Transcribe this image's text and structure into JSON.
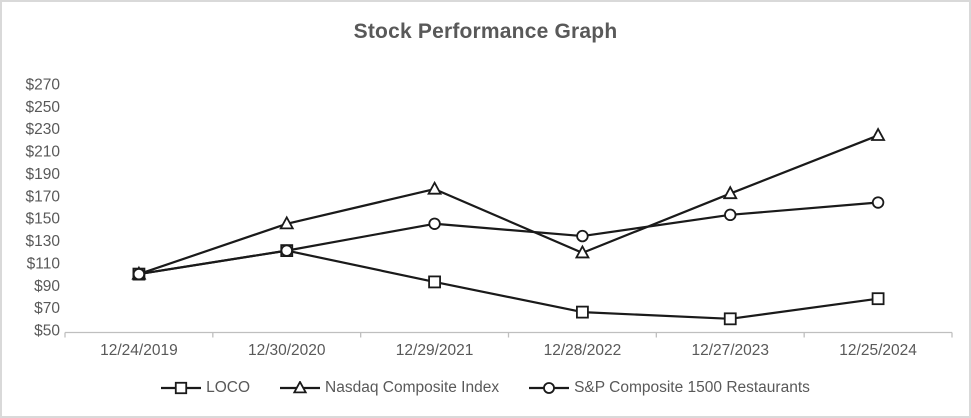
{
  "title": "Stock Performance Graph",
  "colors": {
    "line": "#1a1a1a",
    "axis": "#bfbfbf",
    "text": "#595959",
    "frame_border": "#d9d9d9",
    "background": "#ffffff"
  },
  "chart_data": {
    "type": "line",
    "title": "Stock Performance Graph",
    "categories": [
      "12/24/2019",
      "12/30/2020",
      "12/29/2021",
      "12/28/2022",
      "12/27/2023",
      "12/25/2024"
    ],
    "series": [
      {
        "name": "LOCO",
        "marker": "square",
        "values": [
          100,
          121,
          93,
          66,
          60,
          78
        ]
      },
      {
        "name": "Nasdaq Composite Index",
        "marker": "triangle",
        "values": [
          100,
          145,
          176,
          119,
          172,
          224
        ]
      },
      {
        "name": "S&P Composite 1500 Restaurants",
        "marker": "circle",
        "values": [
          100,
          121,
          145,
          134,
          153,
          164
        ]
      }
    ],
    "xlabel": "",
    "ylabel": "",
    "y_axis": {
      "min": 50,
      "max": 270,
      "step": 20,
      "tick_prefix": "$"
    },
    "grid": false,
    "legend_position": "bottom",
    "line_color": "#1a1a1a",
    "marker_fill": "#ffffff"
  }
}
